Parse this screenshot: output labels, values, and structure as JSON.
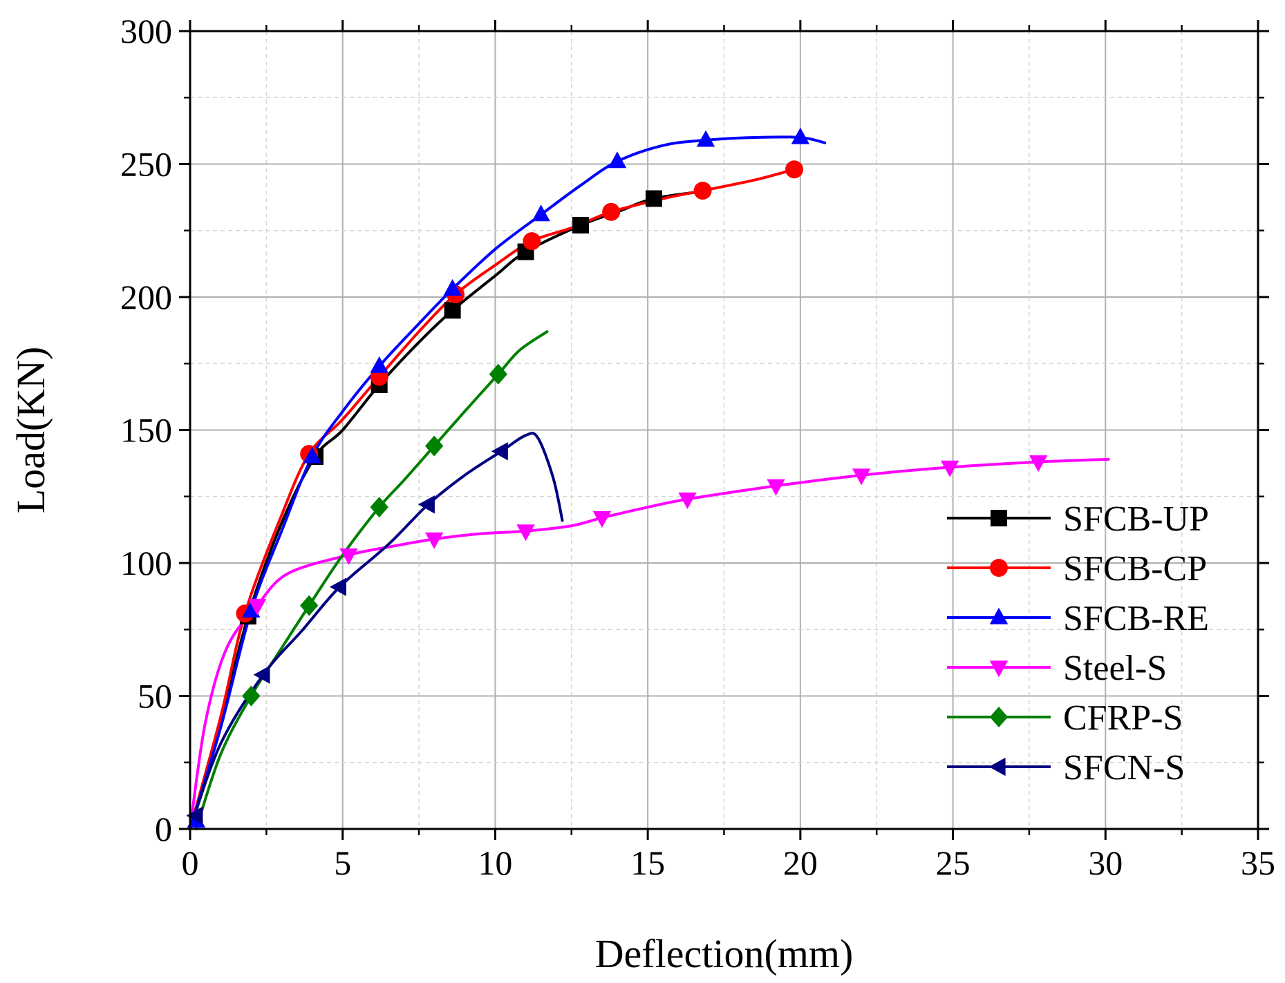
{
  "chart_data": {
    "type": "line",
    "title": "",
    "xlabel": "Deflection(mm)",
    "ylabel": "Load(KN)",
    "xlim": [
      0,
      35
    ],
    "ylim": [
      0,
      300
    ],
    "xticks": [
      0,
      5,
      10,
      15,
      20,
      25,
      30,
      35
    ],
    "yticks": [
      0,
      50,
      100,
      150,
      200,
      250,
      300
    ],
    "grid": true,
    "legend_position": "bottom-right",
    "series": [
      {
        "name": "SFCB-UP",
        "color": "#000000",
        "marker": "square",
        "points": [
          [
            0,
            0
          ],
          [
            1,
            40
          ],
          [
            1.9,
            80
          ],
          [
            3,
            115
          ],
          [
            4.1,
            140
          ],
          [
            5,
            150
          ],
          [
            6.2,
            167
          ],
          [
            7.5,
            183
          ],
          [
            8.6,
            195
          ],
          [
            10,
            208
          ],
          [
            11,
            217
          ],
          [
            12.8,
            227
          ],
          [
            14,
            232
          ],
          [
            15.2,
            237
          ],
          [
            17,
            240
          ]
        ],
        "marker_points": [
          [
            1.9,
            80
          ],
          [
            4.1,
            140
          ],
          [
            6.2,
            167
          ],
          [
            8.6,
            195
          ],
          [
            11,
            217
          ],
          [
            12.8,
            227
          ],
          [
            15.2,
            237
          ]
        ]
      },
      {
        "name": "SFCB-CP",
        "color": "#ff0000",
        "marker": "circle",
        "points": [
          [
            0,
            0
          ],
          [
            1,
            42
          ],
          [
            1.8,
            81
          ],
          [
            3,
            118
          ],
          [
            3.9,
            141
          ],
          [
            5,
            154
          ],
          [
            6.2,
            170
          ],
          [
            7.5,
            187
          ],
          [
            8.7,
            201
          ],
          [
            10,
            212
          ],
          [
            11.2,
            221
          ],
          [
            12.5,
            226
          ],
          [
            13.8,
            232
          ],
          [
            15.5,
            237
          ],
          [
            16.8,
            240
          ],
          [
            18.5,
            244
          ],
          [
            19.8,
            248
          ]
        ],
        "marker_points": [
          [
            1.8,
            81
          ],
          [
            3.9,
            141
          ],
          [
            6.2,
            170
          ],
          [
            8.7,
            201
          ],
          [
            11.2,
            221
          ],
          [
            13.8,
            232
          ],
          [
            16.8,
            240
          ],
          [
            19.8,
            248
          ]
        ]
      },
      {
        "name": "SFCB-RE",
        "color": "#0000ff",
        "marker": "triangle-up",
        "points": [
          [
            0,
            0
          ],
          [
            1,
            38
          ],
          [
            2,
            82
          ],
          [
            3,
            112
          ],
          [
            4,
            140
          ],
          [
            5,
            157
          ],
          [
            6.2,
            174
          ],
          [
            7.5,
            190
          ],
          [
            8.6,
            203
          ],
          [
            10,
            218
          ],
          [
            11.5,
            231
          ],
          [
            12.8,
            242
          ],
          [
            14,
            251
          ],
          [
            15.5,
            257
          ],
          [
            16.9,
            259
          ],
          [
            18.5,
            260
          ],
          [
            20,
            260
          ],
          [
            20.8,
            258
          ]
        ],
        "marker_points": [
          [
            0.2,
            3
          ],
          [
            2,
            82
          ],
          [
            4,
            140
          ],
          [
            6.2,
            174
          ],
          [
            8.6,
            203
          ],
          [
            11.5,
            231
          ],
          [
            14,
            251
          ],
          [
            16.9,
            259
          ],
          [
            20,
            260
          ]
        ]
      },
      {
        "name": "Steel-S",
        "color": "#ff00ff",
        "marker": "triangle-down",
        "points": [
          [
            0,
            0
          ],
          [
            0.5,
            40
          ],
          [
            1.2,
            68
          ],
          [
            2.2,
            84
          ],
          [
            3.2,
            96
          ],
          [
            5.2,
            103
          ],
          [
            6.5,
            106
          ],
          [
            8,
            109
          ],
          [
            9.5,
            111
          ],
          [
            11,
            112
          ],
          [
            12.5,
            114
          ],
          [
            13.5,
            117
          ],
          [
            15,
            121
          ],
          [
            16.3,
            124
          ],
          [
            19.2,
            129
          ],
          [
            22,
            133
          ],
          [
            24.9,
            136
          ],
          [
            27.8,
            138
          ],
          [
            30.1,
            139
          ]
        ],
        "marker_points": [
          [
            2.2,
            84
          ],
          [
            5.2,
            103
          ],
          [
            8,
            109
          ],
          [
            11,
            112
          ],
          [
            13.5,
            117
          ],
          [
            16.3,
            124
          ],
          [
            19.2,
            129
          ],
          [
            22,
            133
          ],
          [
            24.9,
            136
          ],
          [
            27.8,
            138
          ]
        ]
      },
      {
        "name": "CFRP-S",
        "color": "#008000",
        "marker": "diamond",
        "points": [
          [
            0.2,
            0
          ],
          [
            1,
            28
          ],
          [
            2,
            50
          ],
          [
            3,
            68
          ],
          [
            3.9,
            84
          ],
          [
            5,
            103
          ],
          [
            6.2,
            121
          ],
          [
            7,
            131
          ],
          [
            8,
            144
          ],
          [
            9,
            157
          ],
          [
            10.1,
            171
          ],
          [
            10.8,
            180
          ],
          [
            11.7,
            187
          ]
        ],
        "marker_points": [
          [
            2,
            50
          ],
          [
            3.9,
            84
          ],
          [
            6.2,
            121
          ],
          [
            8,
            144
          ],
          [
            10.1,
            171
          ]
        ]
      },
      {
        "name": "SFCN-S",
        "color": "#000080",
        "marker": "triangle-left",
        "points": [
          [
            0,
            0
          ],
          [
            1,
            32
          ],
          [
            2.4,
            58
          ],
          [
            3.7,
            75
          ],
          [
            4.9,
            91
          ],
          [
            6.5,
            107
          ],
          [
            7.8,
            122
          ],
          [
            9,
            133
          ],
          [
            10.2,
            142
          ],
          [
            11,
            148
          ],
          [
            11.4,
            147
          ],
          [
            11.9,
            132
          ],
          [
            12.2,
            116
          ]
        ],
        "marker_points": [
          [
            0.2,
            5
          ],
          [
            2.4,
            58
          ],
          [
            4.9,
            91
          ],
          [
            7.8,
            122
          ],
          [
            10.2,
            142
          ]
        ]
      }
    ]
  }
}
